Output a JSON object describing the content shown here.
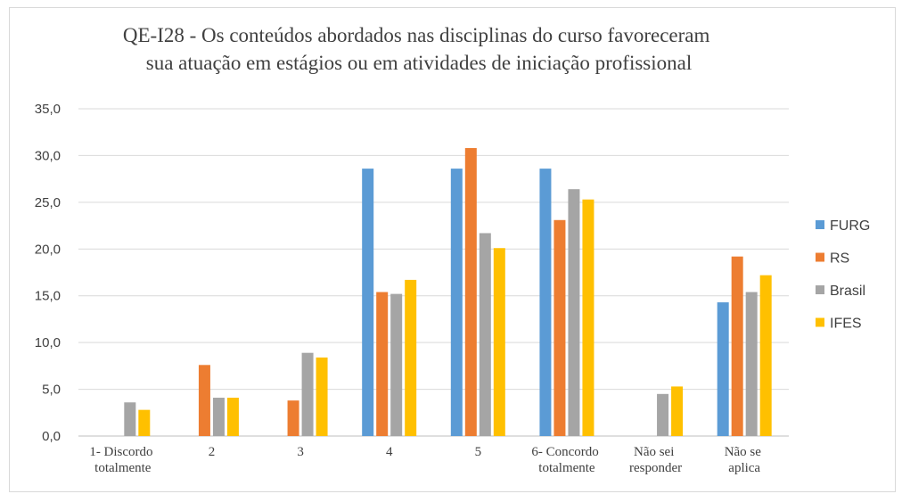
{
  "chart_data": {
    "type": "bar",
    "title": "QE-I28 - Os conteúdos abordados nas disciplinas do curso favoreceram sua atuação em estágios ou em atividades de iniciação profissional",
    "categories": [
      "1- Discordo totalmente",
      "2",
      "3",
      "4",
      "5",
      "6- Concordo totalmente",
      "Não sei responder",
      "Não se aplica"
    ],
    "series": [
      {
        "name": "FURG",
        "color": "#5b9bd5",
        "values": [
          0,
          0,
          0,
          28.6,
          28.6,
          28.6,
          0,
          14.3
        ]
      },
      {
        "name": "RS",
        "color": "#ed7d31",
        "values": [
          0,
          7.6,
          3.8,
          15.4,
          30.8,
          23.1,
          0,
          19.2
        ]
      },
      {
        "name": "Brasil",
        "color": "#a5a5a5",
        "values": [
          3.6,
          4.1,
          8.9,
          15.2,
          21.7,
          26.4,
          4.5,
          15.4
        ]
      },
      {
        "name": "IFES",
        "color": "#ffc000",
        "values": [
          2.8,
          4.1,
          8.4,
          16.7,
          20.1,
          25.3,
          5.3,
          17.2
        ]
      }
    ],
    "ylim": [
      0,
      35
    ],
    "yticks": [
      {
        "value": 0,
        "label": "0,0"
      },
      {
        "value": 5,
        "label": "5,0"
      },
      {
        "value": 10,
        "label": "10,0"
      },
      {
        "value": 15,
        "label": "15,0"
      },
      {
        "value": 20,
        "label": "20,0"
      },
      {
        "value": 25,
        "label": "25,0"
      },
      {
        "value": 30,
        "label": "30,0"
      },
      {
        "value": 35,
        "label": "35,0"
      }
    ],
    "grid": true,
    "legend": "right"
  }
}
